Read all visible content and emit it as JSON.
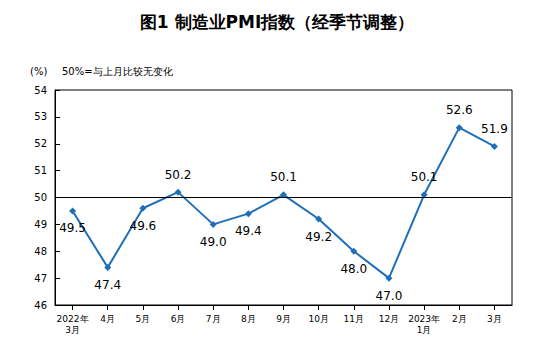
{
  "chart_data": {
    "type": "line",
    "title": "图1 制造业PMI指数（经季节调整）",
    "y_label": "(%)",
    "note": "50%=与上月比较无变化",
    "categories": [
      "2022年\n3月",
      "4月",
      "5月",
      "6月",
      "7月",
      "8月",
      "9月",
      "10月",
      "11月",
      "12月",
      "2023年\n1月",
      "2月",
      "3月"
    ],
    "values": [
      49.5,
      47.4,
      49.6,
      50.2,
      49.0,
      49.4,
      50.1,
      49.2,
      48.0,
      47.0,
      50.1,
      52.6,
      51.9
    ],
    "value_labels": [
      "49.5",
      "47.4",
      "49.6",
      "50.2",
      "49.0",
      "49.4",
      "50.1",
      "49.2",
      "48.0",
      "47.0",
      "50.1",
      "52.6",
      "51.9"
    ],
    "reference_line": 50,
    "color": "#1f6fb8",
    "marker": "diamond",
    "ylim": [
      46,
      54
    ],
    "yticks": [
      46,
      47,
      48,
      49,
      50,
      51,
      52,
      53,
      54
    ],
    "grid": false,
    "data_labels": true
  }
}
